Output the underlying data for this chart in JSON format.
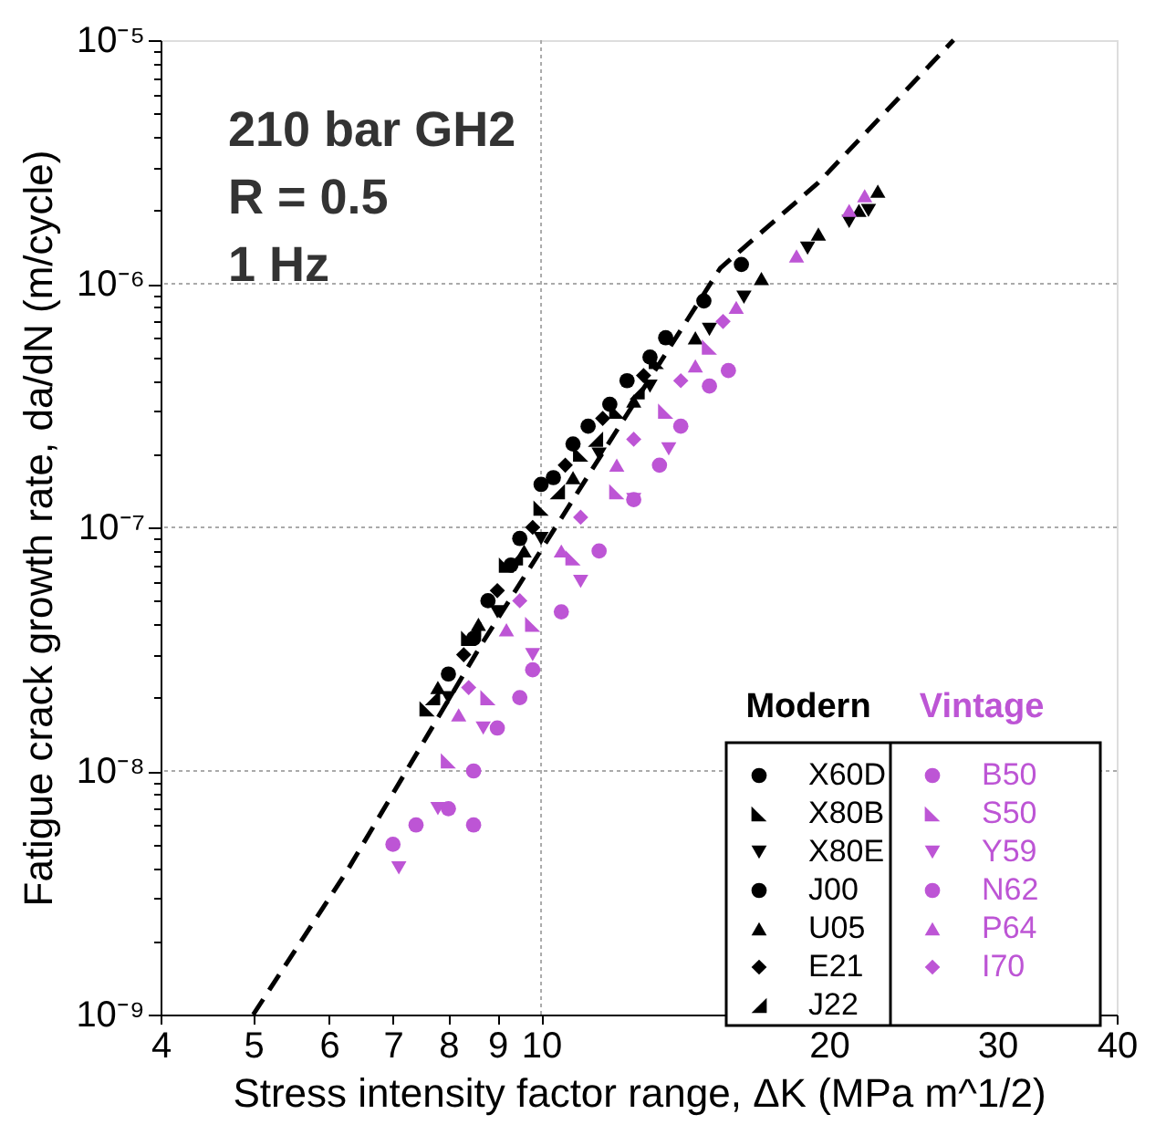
{
  "chart_data": {
    "type": "scatter",
    "xlabel": "Stress intensity factor range, ΔK (MPa m^1/2)",
    "ylabel": "Fatigue crack growth rate, da/dN (m/cycle)",
    "log": "xy",
    "grid": true,
    "legend": "bottom right",
    "xlim": [
      4,
      40
    ],
    "xticks": [
      4,
      5,
      6,
      7,
      8,
      9,
      10,
      20,
      30,
      40
    ],
    "ylim": [
      1e-09,
      1e-05
    ],
    "yticks": [
      {
        "value": 1e-09,
        "label": "10⁻⁹"
      },
      {
        "value": 2e-09,
        "label": null
      },
      {
        "value": 3e-09,
        "label": null
      },
      {
        "value": 4e-09,
        "label": null
      },
      {
        "value": 5e-09,
        "label": null
      },
      {
        "value": 6e-09,
        "label": null
      },
      {
        "value": 7e-09,
        "label": null
      },
      {
        "value": 8e-09,
        "label": null
      },
      {
        "value": 9e-09,
        "label": null
      },
      {
        "value": 1e-08,
        "label": "10⁻⁸"
      },
      {
        "value": 2e-08,
        "label": null
      },
      {
        "value": 3e-08,
        "label": null
      },
      {
        "value": 4e-08,
        "label": null
      },
      {
        "value": 5e-08,
        "label": null
      },
      {
        "value": 6e-08,
        "label": null
      },
      {
        "value": 7e-08,
        "label": null
      },
      {
        "value": 8e-08,
        "label": null
      },
      {
        "value": 9e-08,
        "label": null
      },
      {
        "value": 1e-07,
        "label": "10⁻⁷"
      },
      {
        "value": 2e-07,
        "label": null
      },
      {
        "value": 3e-07,
        "label": null
      },
      {
        "value": 4e-07,
        "label": null
      },
      {
        "value": 5e-07,
        "label": null
      },
      {
        "value": 6e-07,
        "label": null
      },
      {
        "value": 7e-07,
        "label": null
      },
      {
        "value": 8e-07,
        "label": null
      },
      {
        "value": 9e-07,
        "label": null
      },
      {
        "value": 1e-06,
        "label": "10⁻⁶"
      },
      {
        "value": 2e-06,
        "label": null
      },
      {
        "value": 3e-06,
        "label": null
      },
      {
        "value": 4e-06,
        "label": null
      },
      {
        "value": 5e-06,
        "label": null
      },
      {
        "value": 6e-06,
        "label": null
      },
      {
        "value": 7e-06,
        "label": null
      },
      {
        "value": 8e-06,
        "label": null
      },
      {
        "value": 9e-06,
        "label": null
      },
      {
        "value": 1e-05,
        "label": "10⁻⁵"
      }
    ],
    "annotations": [
      "210 bar GH2",
      "R = 0.5",
      "1 Hz",
      "Modern",
      "Vintage"
    ],
    "series": [
      {
        "type": "line",
        "line_style": "dashed",
        "color": "#000000",
        "x": [
          5,
          6.27,
          8.66,
          12,
          15.4,
          19.5,
          27
        ],
        "values": [
          1e-09,
          3.9e-09,
          3.3e-08,
          2.5e-07,
          1.16e-06,
          2.6e-06,
          1e-05
        ]
      },
      {
        "name": "X60D",
        "marker": "circle",
        "color": "#000000",
        "x": [
          8.0,
          8.8,
          9.5,
          10.3,
          11.2,
          12.3,
          13.5,
          14.8,
          16.2
        ],
        "values": [
          2.5e-08,
          5e-08,
          9e-08,
          1.6e-07,
          2.6e-07,
          4e-07,
          6e-07,
          8.5e-07,
          1.2e-06
        ]
      },
      {
        "name": "X80B",
        "marker": "triangle-left",
        "color": "#000000",
        "x": [
          7.6,
          8.4,
          9.2,
          10,
          11,
          12,
          13.2
        ],
        "values": [
          1.8e-08,
          3.5e-08,
          7e-08,
          1.2e-07,
          2e-07,
          3e-07,
          4.8e-07
        ]
      },
      {
        "name": "X80E",
        "marker": "triangle-down",
        "color": "#000000",
        "x": [
          8.0,
          9,
          10,
          11.5,
          13,
          15,
          16.3,
          19,
          21,
          22
        ],
        "values": [
          2e-08,
          4.5e-08,
          9e-08,
          2e-07,
          3.8e-07,
          6.5e-07,
          8.8e-07,
          1.4e-06,
          1.8e-06,
          2e-06
        ]
      },
      {
        "name": "J00",
        "marker": "circle",
        "color": "#000000",
        "x": [
          8.5,
          9.3,
          10,
          10.8,
          11.8,
          13
        ],
        "values": [
          3.5e-08,
          7e-08,
          1.5e-07,
          2.2e-07,
          3.2e-07,
          5e-07
        ]
      },
      {
        "name": "U05",
        "marker": "triangle",
        "color": "#000000",
        "x": [
          7.8,
          8.6,
          9.6,
          10.8,
          12.5,
          14.5,
          17,
          19.5,
          21.5,
          22.5
        ],
        "values": [
          2.2e-08,
          4e-08,
          8e-08,
          1.6e-07,
          3.3e-07,
          6e-07,
          1.05e-06,
          1.6e-06,
          2e-06,
          2.4e-06
        ]
      },
      {
        "name": "E21",
        "marker": "diamond",
        "color": "#000000",
        "x": [
          8.3,
          9,
          9.8,
          10.6,
          11.6,
          12.8
        ],
        "values": [
          3e-08,
          5.5e-08,
          1e-07,
          1.8e-07,
          2.8e-07,
          4.2e-07
        ]
      },
      {
        "name": "J22",
        "marker": "triangle-right",
        "color": "#000000",
        "x": [
          7.7,
          8.5,
          9.4,
          10.4,
          11.4,
          12.6
        ],
        "values": [
          2e-08,
          3.8e-08,
          7.5e-08,
          1.4e-07,
          2.3e-07,
          3.6e-07
        ]
      },
      {
        "name": "B50",
        "marker": "circle",
        "color": "#bd55d5",
        "x": [
          7.0,
          7.4,
          8.0,
          8.5,
          9.0,
          9.8
        ],
        "values": [
          5e-09,
          6e-09,
          7e-09,
          1e-08,
          1.5e-08,
          2.6e-08
        ]
      },
      {
        "name": "S50",
        "marker": "triangle-left",
        "color": "#bd55d5",
        "x": [
          8.0,
          8.8,
          9.8,
          10.8,
          12,
          13.5,
          15
        ],
        "values": [
          1.1e-08,
          2e-08,
          4e-08,
          7.5e-08,
          1.4e-07,
          3e-07,
          5.5e-07
        ]
      },
      {
        "name": "Y59",
        "marker": "triangle-down",
        "color": "#bd55d5",
        "x": [
          7.1,
          7.8,
          8.7,
          9.8,
          11,
          12.5,
          13.6
        ],
        "values": [
          4e-09,
          7e-09,
          1.5e-08,
          3e-08,
          6e-08,
          1.3e-07,
          2.1e-07
        ]
      },
      {
        "name": "N62",
        "marker": "circle",
        "color": "#bd55d5",
        "x": [
          8.5,
          9.5,
          10.5,
          11.5,
          12.5,
          13.3,
          14,
          15,
          15.7
        ],
        "values": [
          6e-09,
          2e-08,
          4.5e-08,
          8e-08,
          1.3e-07,
          1.8e-07,
          2.6e-07,
          3.8e-07,
          4.4e-07
        ]
      },
      {
        "name": "P64",
        "marker": "triangle",
        "color": "#bd55d5",
        "x": [
          8.2,
          9.2,
          10.5,
          12,
          14.5,
          16,
          18.5,
          21,
          21.8
        ],
        "values": [
          1.7e-08,
          3.8e-08,
          8e-08,
          1.8e-07,
          4.6e-07,
          8e-07,
          1.3e-06,
          2e-06,
          2.3e-06
        ]
      },
      {
        "name": "I70",
        "marker": "diamond",
        "color": "#bd55d5",
        "x": [
          8.4,
          9.5,
          11,
          12.5,
          14,
          15.5
        ],
        "values": [
          2.2e-08,
          5e-08,
          1.1e-07,
          2.3e-07,
          4e-07,
          7e-07
        ]
      }
    ]
  }
}
